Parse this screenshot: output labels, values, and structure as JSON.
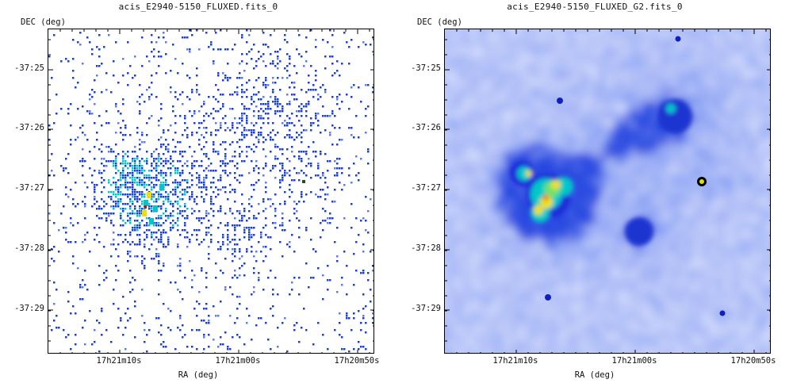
{
  "panels": [
    {
      "title": "acis_E2940-5150_FLUXED.fits_0",
      "dec_label": "DEC (deg)",
      "ra_label": "RA (deg)",
      "image_desc": "raw-counts",
      "y_ticks": [
        "-37:25",
        "-37:26",
        "-37:27",
        "-37:28",
        "-37:29"
      ],
      "x_ticks": [
        "17h21m10s",
        "17h21m00s",
        "17h20m50s"
      ]
    },
    {
      "title": "acis_E2940-5150_FLUXED_G2.fits_0",
      "dec_label": "DEC (deg)",
      "ra_label": "RA (deg)",
      "image_desc": "smoothed",
      "y_ticks": [
        "-37:25",
        "-37:26",
        "-37:27",
        "-37:28",
        "-37:29"
      ],
      "x_ticks": [
        "17h21m10s",
        "17h21m00s",
        "17h20m50s"
      ]
    }
  ],
  "colors": {
    "sparse": "#1a3fd6",
    "low": "#5a7cf0",
    "mid": "#00c8c8",
    "high": "#f0e000",
    "peak": "#d01010",
    "haze": "#c8d2fa"
  }
}
